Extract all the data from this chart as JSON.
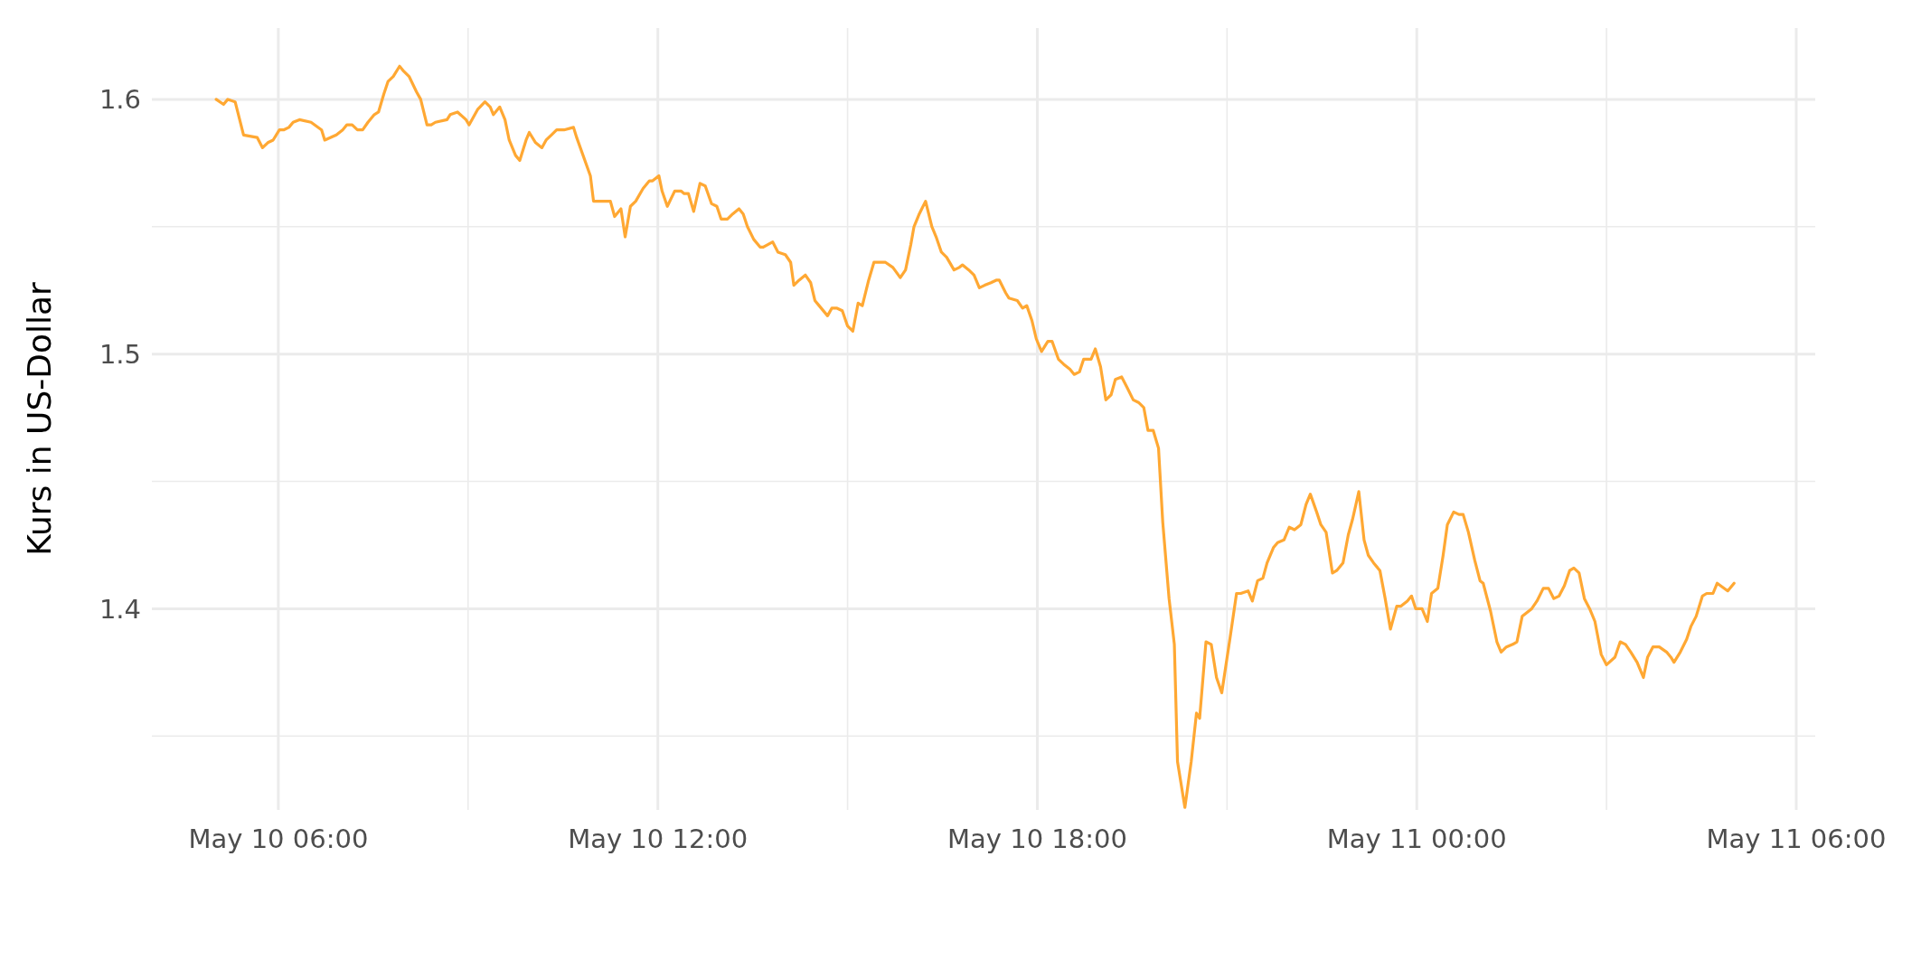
{
  "chart_data": {
    "type": "line",
    "ylabel": "Kurs in US-Dollar",
    "grid": true,
    "xlim": [
      "--05-10T04:00",
      "--05-11T06:18"
    ],
    "ylim": [
      1.321,
      1.628
    ],
    "xticks": [
      {
        "value": "--05-10T06:00",
        "label": "May 10 06:00"
      },
      {
        "value": "--05-10T09:00",
        "label": null
      },
      {
        "value": "--05-10T12:00",
        "label": "May 10 12:00"
      },
      {
        "value": "--05-10T15:00",
        "label": null
      },
      {
        "value": "--05-10T18:00",
        "label": "May 10 18:00"
      },
      {
        "value": "--05-10T21:00",
        "label": null
      },
      {
        "value": "--05-11T00:00",
        "label": "May 11 00:00"
      },
      {
        "value": "--05-11T03:00",
        "label": null
      },
      {
        "value": "--05-11T06:00",
        "label": "May 11 06:00"
      }
    ],
    "yticks": [
      {
        "value": 1.35,
        "label": null
      },
      1.4,
      {
        "value": 1.45,
        "label": null
      },
      1.5,
      {
        "value": 1.55,
        "label": null
      },
      1.6
    ],
    "series": [
      {
        "color": "#ffa833",
        "x": [
          "--05-10T05:01",
          "--05-10T05:08",
          "--05-10T05:12",
          "--05-10T05:19",
          "--05-10T05:27",
          "--05-10T05:40",
          "--05-10T05:45",
          "--05-10T05:50",
          "--05-10T05:55",
          "--05-10T06:01",
          "--05-10T06:05",
          "--05-10T06:10",
          "--05-10T06:14",
          "--05-10T06:20",
          "--05-10T06:31",
          "--05-10T06:41",
          "--05-10T06:44",
          "--05-10T06:55",
          "--05-10T07:01",
          "--05-10T07:05",
          "--05-10T07:10",
          "--05-10T07:15",
          "--05-10T07:20",
          "--05-10T07:25",
          "--05-10T07:31",
          "--05-10T07:35",
          "--05-10T07:40",
          "--05-10T07:44",
          "--05-10T07:49",
          "--05-10T07:55",
          "--05-10T07:59",
          "--05-10T08:04",
          "--05-10T08:11",
          "--05-10T08:15",
          "--05-10T08:21",
          "--05-10T08:25",
          "--05-10T08:29",
          "--05-10T08:40",
          "--05-10T08:43",
          "--05-10T08:50",
          "--05-10T08:58",
          "--05-10T09:01",
          "--05-10T09:09",
          "--05-10T09:16",
          "--05-10T09:21",
          "--05-10T09:24",
          "--05-10T09:30",
          "--05-10T09:35",
          "--05-10T09:39",
          "--05-10T09:45",
          "--05-10T09:49",
          "--05-10T09:55",
          "--05-10T09:58",
          "--05-10T10:04",
          "--05-10T10:10",
          "--05-10T10:14",
          "--05-10T10:19",
          "--05-10T10:24",
          "--05-10T10:31",
          "--05-10T10:40",
          "--05-10T10:43",
          "--05-10T10:56",
          "--05-10T10:59",
          "--05-10T11:04",
          "--05-10T11:11",
          "--05-10T11:15",
          "--05-10T11:19",
          "--05-10T11:25",
          "--05-10T11:29",
          "--05-10T11:34",
          "--05-10T11:39",
          "--05-10T11:46",
          "--05-10T11:52",
          "--05-10T11:55",
          "--05-10T12:01",
          "--05-10T12:04",
          "--05-10T12:09",
          "--05-10T12:16",
          "--05-10T12:22",
          "--05-10T12:25",
          "--05-10T12:29",
          "--05-10T12:34",
          "--05-10T12:40",
          "--05-10T12:45",
          "--05-10T12:51",
          "--05-10T12:56",
          "--05-10T13:00",
          "--05-10T13:06",
          "--05-10T13:11",
          "--05-10T13:17",
          "--05-10T13:21",
          "--05-10T13:25",
          "--05-10T13:31",
          "--05-10T13:37",
          "--05-10T13:40",
          "--05-10T13:49",
          "--05-10T13:54",
          "--05-10T14:01",
          "--05-10T14:06",
          "--05-10T14:09",
          "--05-10T14:14",
          "--05-10T14:20",
          "--05-10T14:25",
          "--05-10T14:29",
          "--05-10T14:33",
          "--05-10T14:41",
          "--05-10T14:45",
          "--05-10T14:50",
          "--05-10T14:55",
          "--05-10T15:00",
          "--05-10T15:05",
          "--05-10T15:10",
          "--05-10T15:14",
          "--05-10T15:20",
          "--05-10T15:25",
          "--05-10T15:31",
          "--05-10T15:36",
          "--05-10T15:43",
          "--05-10T15:50",
          "--05-10T15:55",
          "--05-10T16:00",
          "--05-10T16:03",
          "--05-10T16:08",
          "--05-10T16:14",
          "--05-10T16:20",
          "--05-10T16:24",
          "--05-10T16:29",
          "--05-10T16:34",
          "--05-10T16:41",
          "--05-10T16:46",
          "--05-10T16:49",
          "--05-10T16:55",
          "--05-10T17:00",
          "--05-10T17:05",
          "--05-10T17:10",
          "--05-10T17:16",
          "--05-10T17:21",
          "--05-10T17:24",
          "--05-10T17:30",
          "--05-10T17:33",
          "--05-10T17:41",
          "--05-10T17:46",
          "--05-10T17:50",
          "--05-10T17:55",
          "--05-10T17:59",
          "--05-10T18:04",
          "--05-10T18:10",
          "--05-10T18:14",
          "--05-10T18:20",
          "--05-10T18:25",
          "--05-10T18:31",
          "--05-10T18:35",
          "--05-10T18:40",
          "--05-10T18:44",
          "--05-10T18:51",
          "--05-10T18:55",
          "--05-10T19:00",
          "--05-10T19:05",
          "--05-10T19:10",
          "--05-10T19:14",
          "--05-10T19:20",
          "--05-10T19:25",
          "--05-10T19:31",
          "--05-10T19:36",
          "--05-10T19:41",
          "--05-10T19:45",
          "--05-10T19:50",
          "--05-10T19:55",
          "--05-10T19:59",
          "--05-10T20:05",
          "--05-10T20:10",
          "--05-10T20:13",
          "--05-10T20:20",
          "--05-10T20:26",
          "--05-10T20:31",
          "--05-10T20:34",
          "--05-10T20:40",
          "--05-10T20:45",
          "--05-10T20:50",
          "--05-10T20:55",
          "--05-10T21:03",
          "--05-10T21:09",
          "--05-10T21:13",
          "--05-10T21:20",
          "--05-10T21:24",
          "--05-10T21:29",
          "--05-10T21:34",
          "--05-10T21:38",
          "--05-10T21:44",
          "--05-10T21:48",
          "--05-10T21:54",
          "--05-10T21:59",
          "--05-10T22:04",
          "--05-10T22:10",
          "--05-10T22:15",
          "--05-10T22:19",
          "--05-10T22:25",
          "--05-10T22:29",
          "--05-10T22:34",
          "--05-10T22:40",
          "--05-10T22:44",
          "--05-10T22:50",
          "--05-10T22:55",
          "--05-10T22:59",
          "--05-10T23:05",
          "--05-10T23:10",
          "--05-10T23:14",
          "--05-10T23:19",
          "--05-10T23:25",
          "--05-10T23:30",
          "--05-10T23:35",
          "--05-10T23:41",
          "--05-10T23:45",
          "--05-10T23:51",
          "--05-10T23:55",
          "--05-10T23:59",
          "--05-11T00:05",
          "--05-11T00:10",
          "--05-11T00:14",
          "--05-11T00:20",
          "--05-11T00:25",
          "--05-11T00:29",
          "--05-11T00:35",
          "--05-11T00:40",
          "--05-11T00:44",
          "--05-11T00:49",
          "--05-11T00:55",
          "--05-11T01:00",
          "--05-11T01:03",
          "--05-11T01:10",
          "--05-11T01:16",
          "--05-11T01:20",
          "--05-11T01:25",
          "--05-11T01:31",
          "--05-11T01:35",
          "--05-11T01:40",
          "--05-11T01:49",
          "--05-11T01:54",
          "--05-11T02:00",
          "--05-11T02:05",
          "--05-11T02:10",
          "--05-11T02:15",
          "--05-11T02:20",
          "--05-11T02:25",
          "--05-11T02:29",
          "--05-11T02:34",
          "--05-11T02:39",
          "--05-11T02:44",
          "--05-11T02:49",
          "--05-11T02:55",
          "--05-11T03:00",
          "--05-11T03:08",
          "--05-11T03:13",
          "--05-11T03:18",
          "--05-11T03:23",
          "--05-11T03:29",
          "--05-11T03:35",
          "--05-11T03:39",
          "--05-11T03:44",
          "--05-11T03:50",
          "--05-11T03:57",
          "--05-11T04:01",
          "--05-11T04:04",
          "--05-11T04:10",
          "--05-11T04:16",
          "--05-11T04:20",
          "--05-11T04:25",
          "--05-11T04:31",
          "--05-11T04:35",
          "--05-11T04:41",
          "--05-11T04:45",
          "--05-11T04:55",
          "--05-11T05:01"
        ],
        "values": [
          1.6,
          1.598,
          1.6,
          1.599,
          1.586,
          1.585,
          1.581,
          1.583,
          1.584,
          1.588,
          1.588,
          1.589,
          1.591,
          1.592,
          1.591,
          1.588,
          1.584,
          1.586,
          1.588,
          1.59,
          1.59,
          1.588,
          1.588,
          1.591,
          1.594,
          1.595,
          1.602,
          1.607,
          1.609,
          1.613,
          1.611,
          1.609,
          1.603,
          1.6,
          1.59,
          1.59,
          1.591,
          1.592,
          1.594,
          1.595,
          1.592,
          1.59,
          1.596,
          1.599,
          1.597,
          1.594,
          1.597,
          1.592,
          1.584,
          1.578,
          1.576,
          1.584,
          1.587,
          1.583,
          1.581,
          1.584,
          1.586,
          1.588,
          1.588,
          1.589,
          1.585,
          1.57,
          1.56,
          1.56,
          1.56,
          1.56,
          1.554,
          1.557,
          1.546,
          1.558,
          1.56,
          1.565,
          1.568,
          1.568,
          1.57,
          1.564,
          1.558,
          1.564,
          1.564,
          1.563,
          1.563,
          1.556,
          1.567,
          1.566,
          1.559,
          1.558,
          1.553,
          1.553,
          1.555,
          1.557,
          1.555,
          1.55,
          1.545,
          1.542,
          1.542,
          1.544,
          1.54,
          1.539,
          1.536,
          1.527,
          1.529,
          1.531,
          1.528,
          1.521,
          1.519,
          1.515,
          1.518,
          1.518,
          1.517,
          1.511,
          1.509,
          1.52,
          1.519,
          1.529,
          1.536,
          1.536,
          1.536,
          1.534,
          1.53,
          1.533,
          1.543,
          1.55,
          1.555,
          1.56,
          1.55,
          1.546,
          1.54,
          1.538,
          1.533,
          1.534,
          1.535,
          1.533,
          1.531,
          1.526,
          1.527,
          1.528,
          1.529,
          1.529,
          1.524,
          1.522,
          1.521,
          1.518,
          1.519,
          1.513,
          1.506,
          1.501,
          1.505,
          1.505,
          1.498,
          1.496,
          1.494,
          1.492,
          1.493,
          1.498,
          1.498,
          1.502,
          1.495,
          1.482,
          1.484,
          1.49,
          1.491,
          1.487,
          1.482,
          1.481,
          1.479,
          1.47,
          1.47,
          1.463,
          1.434,
          1.404,
          1.386,
          1.34,
          1.322,
          1.34,
          1.359,
          1.357,
          1.387,
          1.386,
          1.373,
          1.367,
          1.389,
          1.406,
          1.406,
          1.407,
          1.403,
          1.411,
          1.412,
          1.418,
          1.424,
          1.426,
          1.427,
          1.432,
          1.431,
          1.433,
          1.441,
          1.445,
          1.438,
          1.433,
          1.43,
          1.414,
          1.415,
          1.418,
          1.429,
          1.435,
          1.446,
          1.427,
          1.421,
          1.418,
          1.415,
          1.404,
          1.392,
          1.401,
          1.401,
          1.403,
          1.405,
          1.4,
          1.4,
          1.395,
          1.406,
          1.408,
          1.421,
          1.433,
          1.438,
          1.437,
          1.437,
          1.43,
          1.419,
          1.411,
          1.41,
          1.399,
          1.387,
          1.383,
          1.385,
          1.386,
          1.387,
          1.397,
          1.4,
          1.403,
          1.408,
          1.408,
          1.404,
          1.405,
          1.409,
          1.415,
          1.416,
          1.414,
          1.404,
          1.4,
          1.395,
          1.382,
          1.378,
          1.381,
          1.387,
          1.386,
          1.383,
          1.379,
          1.373,
          1.381,
          1.385,
          1.385,
          1.383,
          1.381,
          1.379,
          1.383,
          1.388,
          1.393,
          1.397,
          1.405,
          1.406,
          1.406,
          1.41,
          1.407,
          1.41
        ]
      }
    ]
  }
}
